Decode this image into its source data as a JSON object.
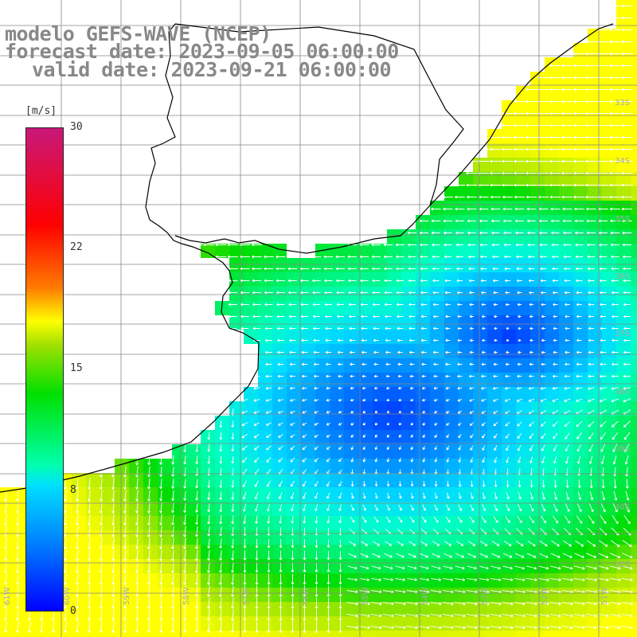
{
  "titles": {
    "line1": "modelo GEFS-WAVE (NCEP)",
    "line2": "forecast date: 2023-09-05 06:00:00",
    "line3": "valid date: 2023-09-21 06:00:00"
  },
  "colorbar": {
    "unit": "[m/s]",
    "ticks": [
      "30",
      "22",
      "15",
      "8",
      "0"
    ],
    "colors": [
      "#c8187a",
      "#ff0000",
      "#ff7a00",
      "#ffff00",
      "#00e000",
      "#00e0ff",
      "#0080ff",
      "#0000ff"
    ]
  },
  "latitude_labels": [
    "33S",
    "34S",
    "35S",
    "36S",
    "37S",
    "38S",
    "39S",
    "40S",
    "41S"
  ],
  "longitude_labels": [
    "61W",
    "60W",
    "59W",
    "58W",
    "57W",
    "56W",
    "55W",
    "54W",
    "53W",
    "52W",
    "51W"
  ],
  "colors": {
    "land": "#ffffff",
    "grid": "#888888",
    "coast": "#000000",
    "arrow": "#ffffff"
  }
}
